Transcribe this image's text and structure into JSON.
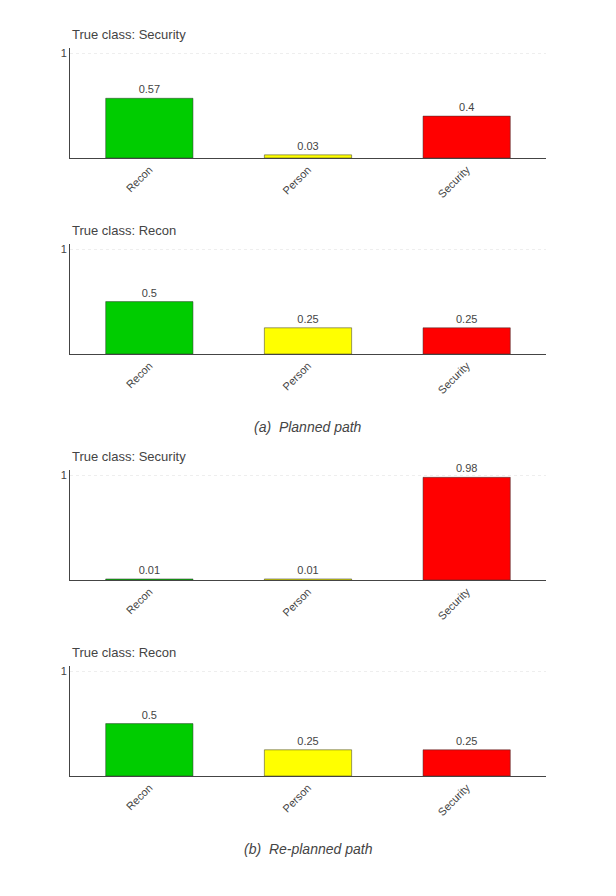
{
  "chart_data": [
    {
      "type": "bar",
      "title": "True class: Security",
      "categories": [
        "Recon",
        "Person",
        "Security"
      ],
      "values": [
        0.57,
        0.03,
        0.4
      ],
      "colors": [
        "#00cc00",
        "#ffff00",
        "#ff0000"
      ],
      "ylim": [
        0,
        1.05
      ],
      "yticks": [
        1
      ],
      "grid": true,
      "data_labels": true
    },
    {
      "type": "bar",
      "title": "True class: Recon",
      "categories": [
        "Recon",
        "Person",
        "Security"
      ],
      "values": [
        0.5,
        0.25,
        0.25
      ],
      "colors": [
        "#00cc00",
        "#ffff00",
        "#ff0000"
      ],
      "ylim": [
        0,
        1.05
      ],
      "yticks": [
        1
      ],
      "grid": true,
      "data_labels": true,
      "annotations": [
        "(a)  Planned path"
      ]
    },
    {
      "type": "bar",
      "title": "True class: Security",
      "categories": [
        "Recon",
        "Person",
        "Security"
      ],
      "values": [
        0.01,
        0.01,
        0.98
      ],
      "colors": [
        "#00cc00",
        "#ffff00",
        "#ff0000"
      ],
      "ylim": [
        0,
        1.05
      ],
      "yticks": [
        1
      ],
      "grid": true,
      "data_labels": true
    },
    {
      "type": "bar",
      "title": "True class: Recon",
      "categories": [
        "Recon",
        "Person",
        "Security"
      ],
      "values": [
        0.5,
        0.25,
        0.25
      ],
      "colors": [
        "#00cc00",
        "#ffff00",
        "#ff0000"
      ],
      "ylim": [
        0,
        1.05
      ],
      "yticks": [
        1
      ],
      "grid": true,
      "data_labels": true,
      "annotations": [
        "(b)  Re-planned path"
      ]
    }
  ]
}
